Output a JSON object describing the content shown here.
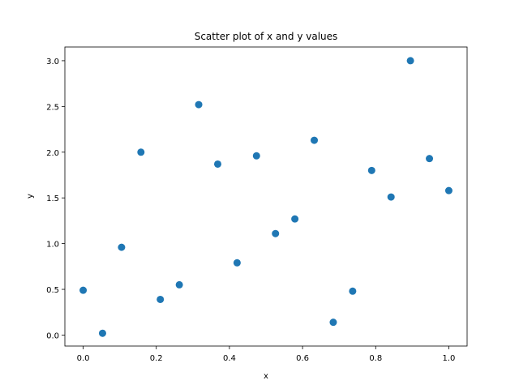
{
  "chart_data": {
    "type": "scatter",
    "title": "Scatter plot of x and y values",
    "xlabel": "x",
    "ylabel": "y",
    "xlim": [
      -0.05,
      1.05
    ],
    "ylim": [
      -0.12,
      3.15
    ],
    "xticks": [
      0.0,
      0.2,
      0.4,
      0.6,
      0.8,
      1.0
    ],
    "xtick_labels": [
      "0.0",
      "0.2",
      "0.4",
      "0.6",
      "0.8",
      "1.0"
    ],
    "yticks": [
      0.0,
      0.5,
      1.0,
      1.5,
      2.0,
      2.5,
      3.0
    ],
    "ytick_labels": [
      "0.0",
      "0.5",
      "1.0",
      "1.5",
      "2.0",
      "2.5",
      "3.0"
    ],
    "grid": false,
    "color": "#1f77b4",
    "points": [
      {
        "x": 0.0,
        "y": 0.49
      },
      {
        "x": 0.053,
        "y": 0.02
      },
      {
        "x": 0.105,
        "y": 0.96
      },
      {
        "x": 0.158,
        "y": 2.0
      },
      {
        "x": 0.211,
        "y": 0.39
      },
      {
        "x": 0.263,
        "y": 0.55
      },
      {
        "x": 0.316,
        "y": 2.52
      },
      {
        "x": 0.368,
        "y": 1.87
      },
      {
        "x": 0.421,
        "y": 0.79
      },
      {
        "x": 0.474,
        "y": 1.96
      },
      {
        "x": 0.526,
        "y": 1.11
      },
      {
        "x": 0.579,
        "y": 1.27
      },
      {
        "x": 0.632,
        "y": 2.13
      },
      {
        "x": 0.684,
        "y": 0.14
      },
      {
        "x": 0.737,
        "y": 0.48
      },
      {
        "x": 0.789,
        "y": 1.8
      },
      {
        "x": 0.842,
        "y": 1.51
      },
      {
        "x": 0.895,
        "y": 3.0
      },
      {
        "x": 0.947,
        "y": 1.93
      },
      {
        "x": 1.0,
        "y": 1.58
      }
    ]
  }
}
